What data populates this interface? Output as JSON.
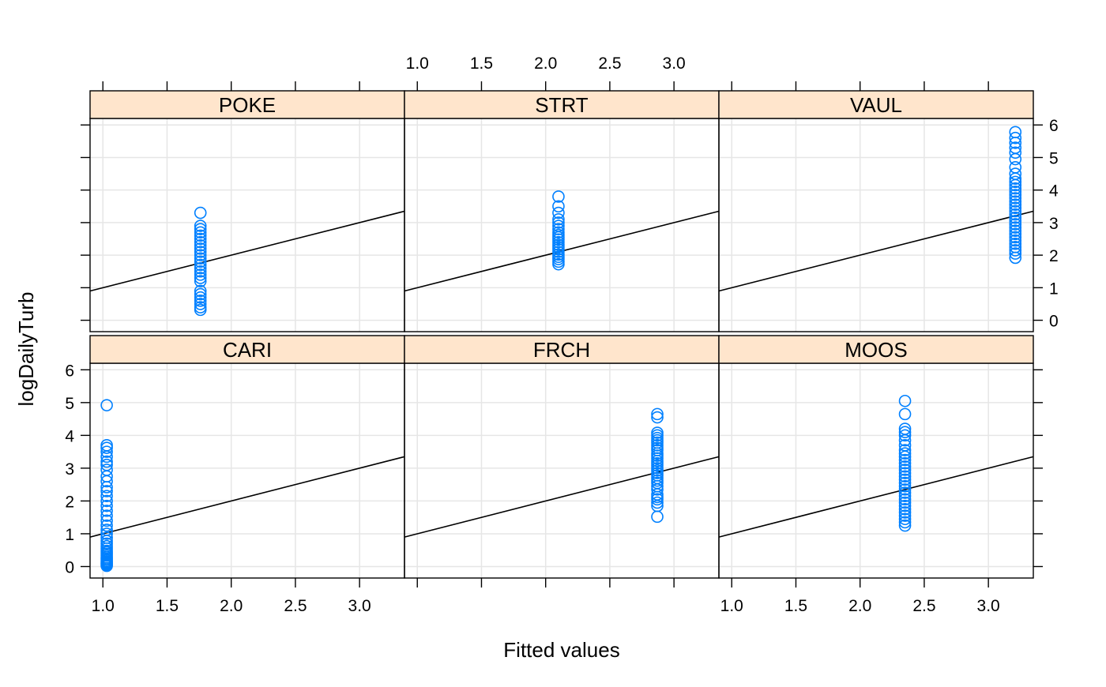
{
  "chart_data": {
    "type": "scatter",
    "xlabel": "Fitted values",
    "ylabel": "logDailyTurb",
    "xlim": [
      0.9,
      3.35
    ],
    "ylim": [
      -0.35,
      6.2
    ],
    "x_ticks": [
      1.0,
      1.5,
      2.0,
      2.5,
      3.0
    ],
    "x_tick_labels": [
      "1.0",
      "1.5",
      "2.0",
      "2.5",
      "3.0"
    ],
    "y_ticks": [
      0,
      1,
      2,
      3,
      4,
      5,
      6
    ],
    "y_tick_labels": [
      "0",
      "1",
      "2",
      "3",
      "4",
      "5",
      "6"
    ],
    "grid": true,
    "reference_line": {
      "intercept": 0,
      "slope": 1
    },
    "colors": {
      "points": "#0080ff",
      "strip": "#ffe5cc",
      "grid": "#e6e6e6",
      "line": "#000000"
    },
    "panels": [
      {
        "name": "CARI",
        "fitted": 1.03,
        "y": [
          0.02,
          0.05,
          0.08,
          0.1,
          0.13,
          0.16,
          0.2,
          0.24,
          0.28,
          0.33,
          0.38,
          0.43,
          0.48,
          0.55,
          0.62,
          0.7,
          0.78,
          0.88,
          1.0,
          1.12,
          1.25,
          1.4,
          1.55,
          1.7,
          1.85,
          2.0,
          2.15,
          2.3,
          2.42,
          2.6,
          2.75,
          2.95,
          3.1,
          3.2,
          3.35,
          3.5,
          3.62,
          3.7,
          4.92
        ]
      },
      {
        "name": "FRCH",
        "fitted": 2.87,
        "y": [
          1.52,
          1.85,
          1.95,
          2.05,
          2.12,
          2.2,
          2.35,
          2.45,
          2.55,
          2.62,
          2.7,
          2.78,
          2.85,
          2.93,
          3.0,
          3.08,
          3.15,
          3.22,
          3.3,
          3.38,
          3.45,
          3.55,
          3.62,
          3.7,
          3.78,
          3.85,
          3.92,
          4.0,
          4.08,
          4.55,
          4.65
        ]
      },
      {
        "name": "MOOS",
        "fitted": 2.35,
        "y": [
          1.25,
          1.35,
          1.45,
          1.55,
          1.65,
          1.75,
          1.85,
          1.95,
          2.05,
          2.15,
          2.25,
          2.35,
          2.45,
          2.55,
          2.65,
          2.75,
          2.85,
          2.95,
          3.05,
          3.15,
          3.25,
          3.35,
          3.45,
          3.55,
          3.7,
          3.85,
          4.0,
          4.1,
          4.2,
          4.65,
          5.05
        ]
      },
      {
        "name": "POKE",
        "fitted": 1.76,
        "y": [
          0.32,
          0.4,
          0.5,
          0.6,
          0.7,
          0.8,
          0.9,
          1.2,
          1.3,
          1.4,
          1.5,
          1.6,
          1.7,
          1.8,
          1.9,
          2.0,
          2.1,
          2.2,
          2.3,
          2.4,
          2.5,
          2.6,
          2.7,
          2.8,
          2.9,
          3.3
        ]
      },
      {
        "name": "STRT",
        "fitted": 2.1,
        "y": [
          1.72,
          1.8,
          1.88,
          1.95,
          2.02,
          2.1,
          2.18,
          2.25,
          2.32,
          2.4,
          2.48,
          2.55,
          2.62,
          2.7,
          2.8,
          2.9,
          3.0,
          3.1,
          3.3,
          3.5,
          3.8
        ]
      },
      {
        "name": "VAUL",
        "fitted": 3.21,
        "y": [
          1.92,
          2.05,
          2.15,
          2.25,
          2.35,
          2.45,
          2.55,
          2.65,
          2.75,
          2.85,
          2.95,
          3.05,
          3.15,
          3.25,
          3.35,
          3.45,
          3.55,
          3.65,
          3.75,
          3.85,
          3.95,
          4.05,
          4.15,
          4.25,
          4.35,
          4.5,
          4.7,
          4.95,
          5.15,
          5.3,
          5.45,
          5.6,
          5.78
        ]
      }
    ]
  }
}
